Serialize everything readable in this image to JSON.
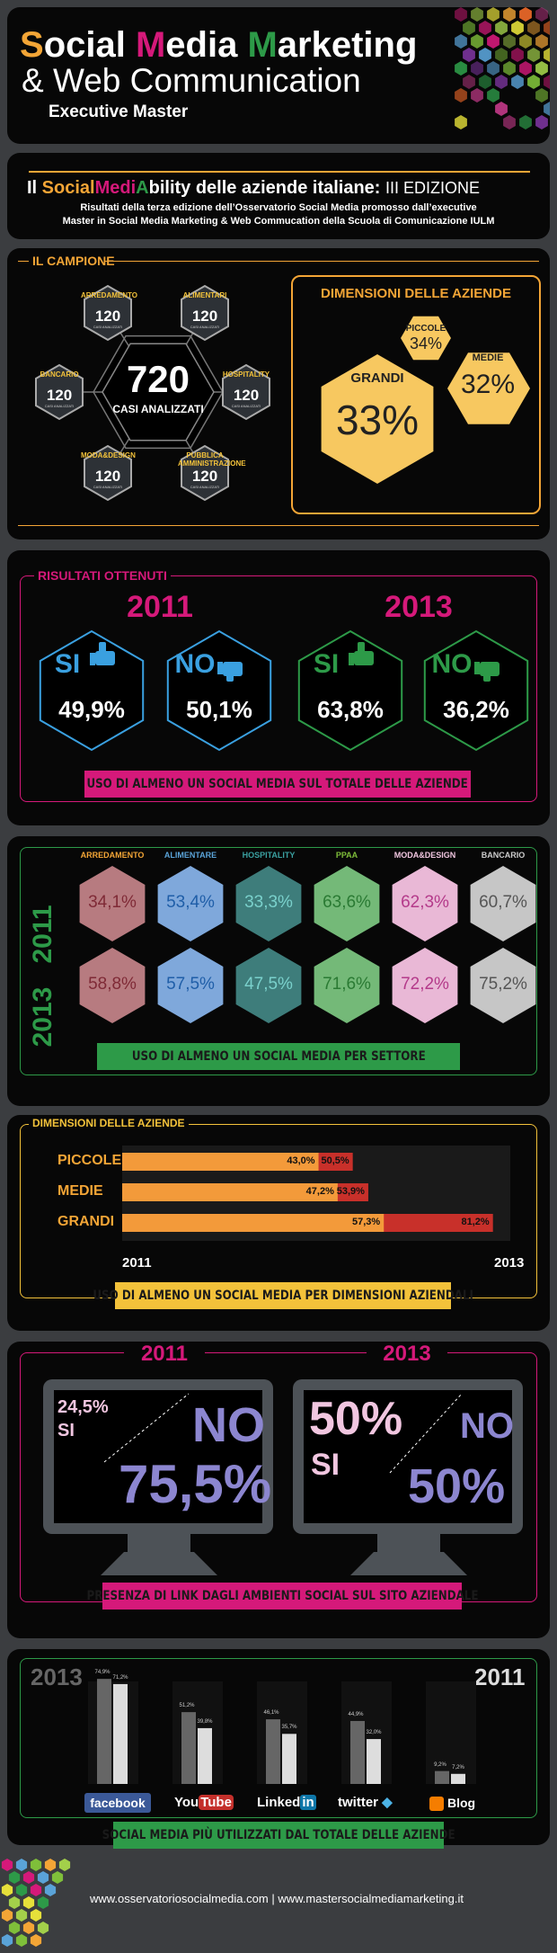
{
  "header": {
    "title_s": "S",
    "title_ocial": "ocial ",
    "title_m": "M",
    "title_edia": "edia ",
    "title_mk": "M",
    "title_arketing": "arketing",
    "line2": "& Web Communication",
    "line3": "Executive Master"
  },
  "intro": {
    "headline_il": "Il ",
    "headline_social": "Social",
    "headline_medi": "Medi",
    "headline_a": "A",
    "headline_bility": "bility delle aziende italiane:",
    "headline_edition": "III EDIZIONE",
    "sub1": "Risultati della terza edizione dell’Osservatorio Social Media promosso dall’executive",
    "sub2": "Master in Social Media Marketing & Web Commucation della Scuola di Comunicazione IULM"
  },
  "campione": {
    "label": "IL CAMPIONE",
    "center_value": "720",
    "center_label": "CASI ANALIZZATI",
    "note": "CASI ANALIZZATI",
    "sectors": [
      {
        "name": "ARREDAMENTO",
        "value": "120"
      },
      {
        "name": "ALIMENTARI",
        "value": "120"
      },
      {
        "name": "BANCARIO",
        "value": "120"
      },
      {
        "name": "HOSPITALITY",
        "value": "120"
      },
      {
        "name": "MODA&DESIGN",
        "value": "120"
      },
      {
        "name": "PUBBLICA AMMINISTRAZIONE",
        "value": "120"
      }
    ],
    "dimensioni_title": "DIMENSIONI DELLE AZIENDE",
    "dimensioni": [
      {
        "name": "PICCOLE",
        "value": "34%"
      },
      {
        "name": "MEDIE",
        "value": "32%"
      },
      {
        "name": "GRANDI",
        "value": "33%"
      }
    ]
  },
  "risultati": {
    "label": "RISULTATI OTTENUTI",
    "year1": "2011",
    "year2": "2013",
    "items": [
      {
        "label": "SI",
        "value": "49,9%"
      },
      {
        "label": "NO",
        "value": "50,1%"
      },
      {
        "label": "SI",
        "value": "63,8%"
      },
      {
        "label": "NO",
        "value": "36,2%"
      }
    ],
    "ribbon": "USO DI ALMENO UN SOCIAL MEDIA SUL TOTALE DELLE AZIENDE"
  },
  "settori": {
    "year1": "2011",
    "year2": "2013",
    "ribbon": "USO DI ALMENO UN SOCIAL MEDIA PER SETTORE",
    "columns": [
      {
        "name": "ARREDAMENTO",
        "v2011": "34,1%",
        "v2013": "58,8%",
        "color": "#b77b80",
        "tcolor": "#7f2a36"
      },
      {
        "name": "ALIMENTARE",
        "v2011": "53,4%",
        "v2013": "57,5%",
        "color": "#7fa8db",
        "tcolor": "#1f5ea8"
      },
      {
        "name": "HOSPITALITY",
        "v2011": "33,3%",
        "v2013": "47,5%",
        "color": "#3e7d7b",
        "tcolor": "#7ad1cc"
      },
      {
        "name": "PPAA",
        "v2011": "63,6%",
        "v2013": "71,6%",
        "color": "#74b978",
        "tcolor": "#2a7a33"
      },
      {
        "name": "MODA&DESIGN",
        "v2011": "62,3%",
        "v2013": "72,2%",
        "color": "#e9b8d6",
        "tcolor": "#b43a8a"
      },
      {
        "name": "BANCARIO",
        "v2011": "60,7%",
        "v2013": "75,2%",
        "color": "#c6c6c6",
        "tcolor": "#555555"
      }
    ]
  },
  "chart_data": {
    "type": "bar",
    "title": "DIMENSIONI DELLE AZIENDE",
    "categories": [
      "PICCOLE",
      "MEDIE",
      "GRANDI"
    ],
    "series": [
      {
        "name": "2011",
        "values": [
          43.0,
          47.2,
          57.3
        ],
        "labels": [
          "43,0%",
          "47,2%",
          "57,3%"
        ]
      },
      {
        "name": "2013",
        "values": [
          50.5,
          53.9,
          81.2
        ],
        "labels": [
          "50,5%",
          "53,9%",
          "81,2%"
        ]
      }
    ],
    "xlabel_left": "2011",
    "xlabel_right": "2013",
    "ribbon": "USO DI ALMENO UN SOCIAL MEDIA PER DIMENSIONI AZIENDALI",
    "colors": {
      "2011": "#f39a3a",
      "2013": "#c8302a"
    }
  },
  "link": {
    "year1": "2011",
    "year2": "2013",
    "m1_si": "24,5%",
    "m1_si_label": "SI",
    "m1_no": "NO",
    "m1_no_value": "75,5%",
    "m2_si": "50%",
    "m2_si_label": "SI",
    "m2_no": "NO",
    "m2_no_value": "50%",
    "ribbon": "PRESENZA DI LINK DAGLI AMBIENTI SOCIAL SUL SITO AZIENDALE"
  },
  "social": {
    "year_left": "2013",
    "year_right": "2011",
    "ribbon": "SOCIAL MEDIA PIÙ UTILIZZATI DAL TOTALE DELLE AZIENDE",
    "items": [
      {
        "name": "facebook",
        "v2013": 74.9,
        "v2011": 71.2,
        "l2013": "74,9%",
        "l2011": "71,2%"
      },
      {
        "name": "YouTube",
        "v2013": 51.2,
        "v2011": 39.8,
        "l2013": "51,2%",
        "l2011": "39,8%"
      },
      {
        "name": "LinkedIn",
        "v2013": 46.1,
        "v2011": 35.7,
        "l2013": "46,1%",
        "l2011": "35,7%"
      },
      {
        "name": "twitter",
        "v2013": 44.9,
        "v2011": 32.0,
        "l2013": "44,9%",
        "l2011": "32,0%"
      },
      {
        "name": "Blog",
        "v2013": 9.2,
        "v2011": 7.2,
        "l2013": "9,2%",
        "l2011": "7,2%"
      }
    ],
    "logo_you": "You",
    "logo_tube": "Tube",
    "logo_linked": "Linked",
    "logo_in": "in",
    "logo_twitter": "twitter",
    "logo_blog": "Blog"
  },
  "footer": {
    "url1": "www.osservatoriosocialmedia.com",
    "sep": "|",
    "url2": "www.mastersocialmediamarketing.it"
  }
}
